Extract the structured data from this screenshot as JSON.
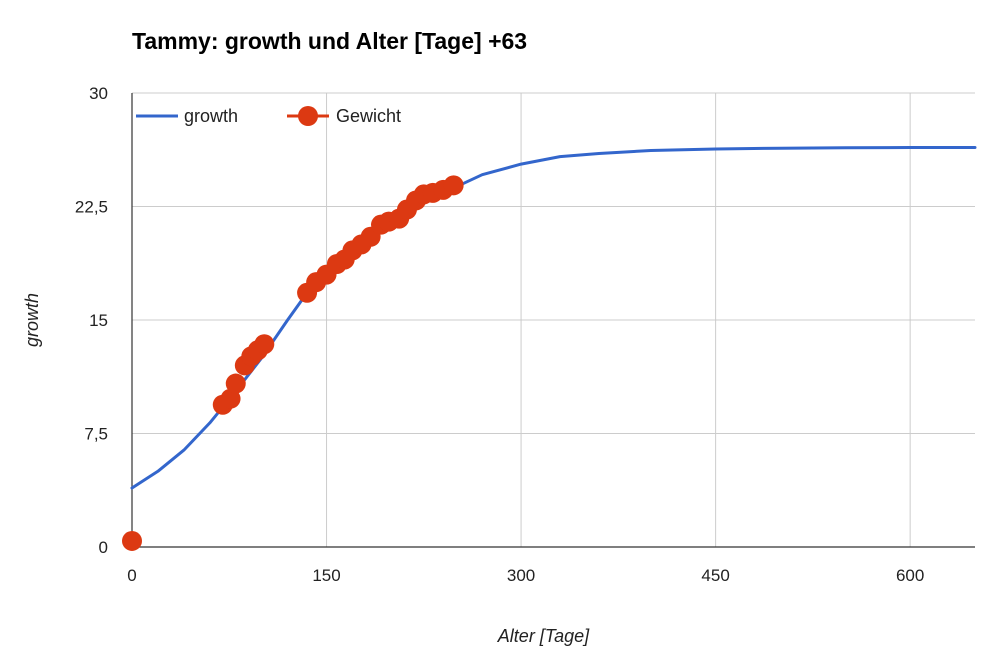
{
  "chart_data": {
    "type": "line",
    "title": "Tammy: growth und Alter [Tage] +63",
    "xlabel": "Alter [Tage]",
    "ylabel": "growth",
    "xlim": [
      0,
      650
    ],
    "ylim": [
      0,
      30
    ],
    "x_ticks": [
      0,
      150,
      300,
      450,
      600
    ],
    "x_tick_labels": [
      "0",
      "150",
      "300",
      "450",
      "600"
    ],
    "y_ticks": [
      0,
      7.5,
      15,
      22.5,
      30
    ],
    "y_tick_labels": [
      "0",
      "7,5",
      "15",
      "22,5",
      "30"
    ],
    "grid": true,
    "legend": "top-left",
    "series": [
      {
        "name": "growth",
        "kind": "line",
        "color": "#3366cc",
        "x": [
          0,
          20,
          40,
          60,
          80,
          100,
          120,
          135,
          150,
          170,
          190,
          210,
          230,
          250,
          270,
          300,
          330,
          360,
          400,
          450,
          500,
          550,
          600,
          650
        ],
        "y": [
          3.9,
          5.0,
          6.4,
          8.2,
          10.3,
          12.5,
          15.0,
          16.8,
          18.2,
          19.6,
          20.9,
          22.0,
          23.0,
          23.8,
          24.6,
          25.3,
          25.8,
          26.0,
          26.2,
          26.3,
          26.35,
          26.38,
          26.4,
          26.4
        ]
      },
      {
        "name": "Gewicht",
        "kind": "scatter",
        "color": "#dc3912",
        "x": [
          0,
          70,
          76,
          80,
          87,
          92,
          97,
          102,
          135,
          142,
          150,
          158,
          164,
          170,
          177,
          184,
          192,
          198,
          206,
          212,
          219,
          225,
          232,
          240,
          248
        ],
        "y": [
          0.4,
          9.4,
          9.8,
          10.8,
          12.0,
          12.6,
          13.0,
          13.4,
          16.8,
          17.5,
          18.0,
          18.7,
          19.0,
          19.6,
          20.0,
          20.5,
          21.3,
          21.5,
          21.7,
          22.3,
          22.9,
          23.3,
          23.4,
          23.6,
          23.9
        ]
      }
    ]
  }
}
